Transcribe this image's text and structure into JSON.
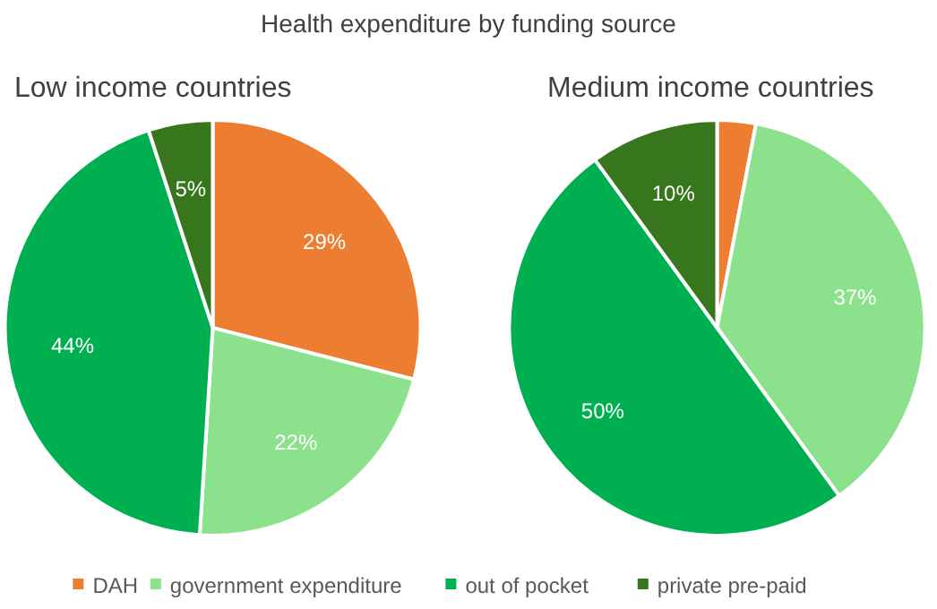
{
  "chart_data": {
    "type": "pie",
    "title": "Health expenditure by funding source",
    "categories": [
      "DAH",
      "government expenditure",
      "out of pocket",
      "private pre-paid"
    ],
    "colors": [
      "#ed7d31",
      "#8ce28c",
      "#00b050",
      "#38761d"
    ],
    "legend": "bottom",
    "series": [
      {
        "name": "Low income countries",
        "values": [
          29,
          22,
          44,
          5
        ],
        "value_labels": [
          "29%",
          "22%",
          "44%",
          "5%"
        ]
      },
      {
        "name": "Medium income countries",
        "values": [
          3,
          37,
          50,
          10
        ],
        "value_labels": [
          null,
          "37%",
          "50%",
          "10%"
        ]
      }
    ]
  }
}
